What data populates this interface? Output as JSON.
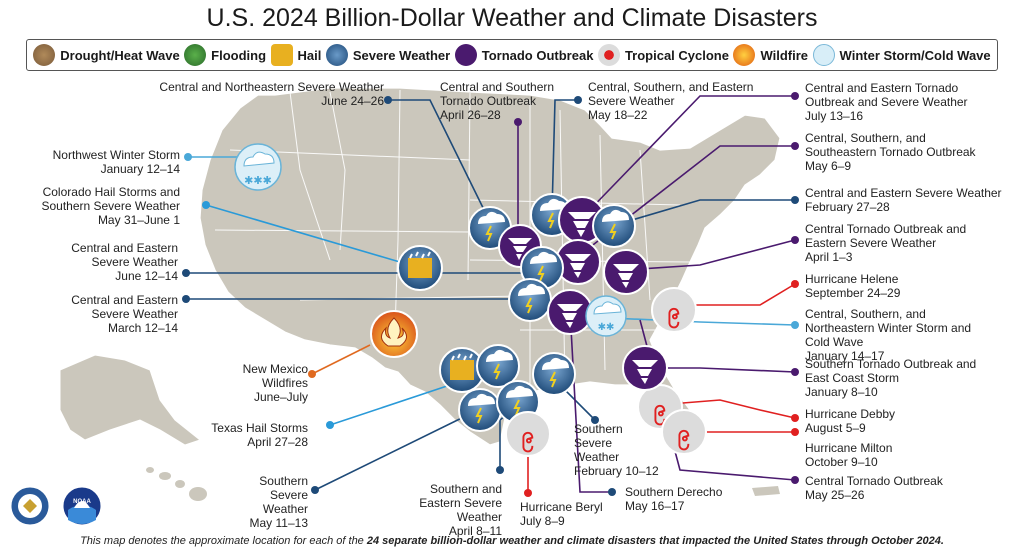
{
  "title": "U.S. 2024 Billion-Dollar Weather and Climate Disasters",
  "legend": [
    {
      "label": "Drought/Heat Wave",
      "icon": "drought-icon",
      "color": "#8a6a4a"
    },
    {
      "label": "Flooding",
      "icon": "flooding-icon",
      "color": "#3a8a3a"
    },
    {
      "label": "Hail",
      "icon": "hail-icon",
      "color": "#e8b020"
    },
    {
      "label": "Severe Weather",
      "icon": "severe-weather-icon",
      "color": "#2e5c8a"
    },
    {
      "label": "Tornado Outbreak",
      "icon": "tornado-icon",
      "color": "#4a1a6e"
    },
    {
      "label": "Tropical Cyclone",
      "icon": "tropical-cyclone-icon",
      "color": "#d0d0d0"
    },
    {
      "label": "Wildfire",
      "icon": "wildfire-icon",
      "color": "#e06a20"
    },
    {
      "label": "Winter Storm/Cold Wave",
      "icon": "winter-storm-icon",
      "color": "#d8eef8"
    }
  ],
  "events": {
    "ne_severe": {
      "name": "Central and Northeastern Severe Weather",
      "date": "June 24–26"
    },
    "cs_tornado": {
      "name": "Central and Southern Tornado Outbreak",
      "date": "April 26–28"
    },
    "cse_severe": {
      "name": "Central, Southern, and Eastern Severe Weather",
      "date": "May 18–22"
    },
    "ce_tornado_jul": {
      "name": "Central and Eastern Tornado Outbreak and Severe Weather",
      "date": "July 13–16"
    },
    "nw_winter": {
      "name": "Northwest Winter Storm",
      "date": "January 12–14"
    },
    "css_tornado": {
      "name": "Central, Southern, and Southeastern Tornado Outbreak",
      "date": "May 6–9"
    },
    "co_hail": {
      "name": "Colorado Hail Storms and Southern Severe Weather",
      "date": "May 31–June 1"
    },
    "ce_severe_feb": {
      "name": "Central and Eastern Severe Weather",
      "date": "February 27–28"
    },
    "ce_severe_jun": {
      "name": "Central and Eastern Severe Weather",
      "date": "June 12–14"
    },
    "ct_eastern_severe": {
      "name": "Central Tornado Outbreak and Eastern Severe Weather",
      "date": "April 1–3"
    },
    "ce_severe_mar": {
      "name": "Central and Eastern Severe Weather",
      "date": "March 12–14"
    },
    "helene": {
      "name": "Hurricane Helene",
      "date": "September 24–29"
    },
    "csn_winter": {
      "name": "Central, Southern, and Northeastern Winter Storm and Cold Wave",
      "date": "January 14–17"
    },
    "nm_wildfire": {
      "name": "New Mexico Wildfires",
      "date": "June–July"
    },
    "s_tornado_jan": {
      "name": "Southern Tornado Outbreak and East Coast Storm",
      "date": "January 8–10"
    },
    "tx_hail": {
      "name": "Texas Hail Storms",
      "date": "April 27–28"
    },
    "s_severe_feb": {
      "name": "Southern Severe Weather",
      "date": "February 10–12"
    },
    "debby": {
      "name": "Hurricane Debby",
      "date": "August 5–9"
    },
    "milton": {
      "name": "Hurricane Milton",
      "date": "October 9–10"
    },
    "s_severe_may": {
      "name": "Southern Severe Weather",
      "date": "May 11–13"
    },
    "se_severe_apr": {
      "name": "Southern and Eastern Severe Weather",
      "date": "April 8–11"
    },
    "s_derecho": {
      "name": "Southern Derecho",
      "date": "May 16–17"
    },
    "beryl": {
      "name": "Hurricane Beryl",
      "date": "July 8–9"
    },
    "c_tornado_may": {
      "name": "Central Tornado Outbreak",
      "date": "May 25–26"
    }
  },
  "footnote": {
    "prefix": "This map denotes the approximate location for each of the ",
    "bold": "24 separate billion-dollar weather and climate disasters that impacted the United States through October 2024.",
    "suffix": ""
  },
  "logos": {
    "left": "department-of-commerce-seal",
    "right": "NOAA"
  }
}
